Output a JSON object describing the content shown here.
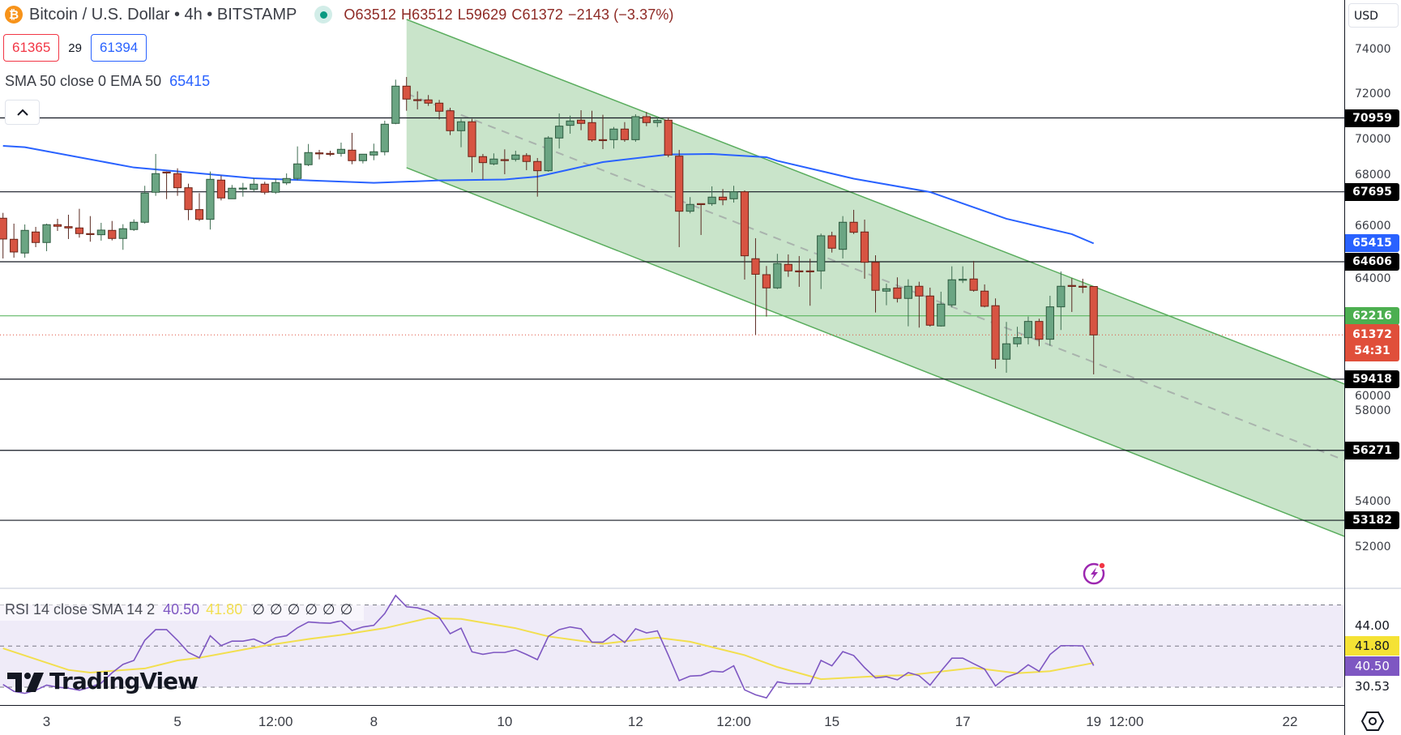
{
  "header": {
    "symbol_icon": "bitcoin-icon",
    "title": "Bitcoin / U.S. Dollar • 4h • BITSTAMP",
    "ohlc": {
      "open": "O63512",
      "high": "H63512",
      "low": "L59629",
      "close": "C61372",
      "change": "−2143 (−3.37%)"
    },
    "sell_price": "61365",
    "spread": "29",
    "buy_price": "61394",
    "indicator_label": "SMA 50 close 0 EMA 50",
    "indicator_value": "65415"
  },
  "rsi_header": {
    "label": "RSI 14 close SMA 14 2",
    "rsi_value": "40.50",
    "sma_value": "41.80",
    "empty_values": "∅∅∅∅∅∅"
  },
  "logo": {
    "text": "TradingView"
  },
  "colors": {
    "up": "#6ba583",
    "down": "#d75442",
    "ema": "#2962ff",
    "channel_fill": "#c9e4ca",
    "channel_line": "#5aad5e",
    "rsi": "#7e57c2",
    "rsi_sma": "#f2df4f",
    "rsi_band": "#efebf8",
    "level_line": "#131722",
    "green_level": "#4caf50",
    "current_price": "#e04f3a"
  },
  "price_axis": {
    "currency": "USD",
    "ticks": [
      "74000",
      "72000",
      "70000",
      "68000",
      "66000",
      "64000",
      "60000",
      "58000",
      "54000",
      "52000"
    ],
    "levels": [
      {
        "value": "70959",
        "color": "#000000"
      },
      {
        "value": "67695",
        "color": "#000000"
      },
      {
        "value": "64606",
        "color": "#000000"
      },
      {
        "value": "59418",
        "color": "#000000"
      },
      {
        "value": "56271",
        "color": "#000000"
      },
      {
        "value": "53182",
        "color": "#000000"
      },
      {
        "value": "65415",
        "color": "#2962ff"
      },
      {
        "value": "62216",
        "color": "#4caf50"
      }
    ],
    "current_price": "61372",
    "countdown": "54:31"
  },
  "rsi_axis": [
    {
      "text": "44.00",
      "bg": "",
      "fg": "#131722"
    },
    {
      "text": "41.80",
      "bg": "#f5e234",
      "fg": "#131722"
    },
    {
      "text": "40.50",
      "bg": "#7e57c2",
      "fg": "#ffffff"
    },
    {
      "text": "30.53",
      "bg": "",
      "fg": "#131722"
    }
  ],
  "time_axis": [
    {
      "label": "3",
      "time": "3 00:00"
    },
    {
      "label": "5",
      "time": "5 00:00"
    },
    {
      "label": "12:00",
      "time": "6 12:00"
    },
    {
      "label": "8",
      "time": "8 00:00"
    },
    {
      "label": "10",
      "time": "10 00:00"
    },
    {
      "label": "12",
      "time": "12 00:00"
    },
    {
      "label": "12:00",
      "time": "13 12:00"
    },
    {
      "label": "15",
      "time": "15 00:00"
    },
    {
      "label": "17",
      "time": "17 00:00"
    },
    {
      "label": "19",
      "time": "19 00:00"
    },
    {
      "label": "12:00",
      "time": "19 12:00"
    },
    {
      "label": "22",
      "time": "22 00:00"
    }
  ],
  "chart_data": {
    "type": "candlestick",
    "interval": "4h",
    "ylim": [
      50500,
      76200
    ],
    "candle_fields": [
      "time",
      "open",
      "high",
      "low",
      "close"
    ],
    "candles": [
      [
        "2 08:00",
        66529,
        66765,
        64750,
        65609
      ],
      [
        "2 12:00",
        65598,
        66289,
        64786,
        65036
      ],
      [
        "2 16:00",
        64990,
        66253,
        64786,
        65992
      ],
      [
        "2 20:00",
        65920,
        66146,
        65251,
        65455
      ],
      [
        "3 00:00",
        65455,
        66289,
        65072,
        66243
      ],
      [
        "3 04:00",
        66243,
        66504,
        65967,
        66171
      ],
      [
        "3 08:00",
        66157,
        66683,
        65609,
        66099
      ],
      [
        "3 12:00",
        66099,
        66944,
        65670,
        65849
      ],
      [
        "3 16:00",
        65849,
        66622,
        65491,
        65840
      ],
      [
        "3 20:00",
        65799,
        66325,
        65537,
        66003
      ],
      [
        "4 00:00",
        65992,
        66407,
        65548,
        65634
      ],
      [
        "4 04:00",
        65634,
        66264,
        65133,
        66064
      ],
      [
        "4 08:00",
        66028,
        66479,
        65967,
        66350
      ],
      [
        "4 12:00",
        66350,
        67961,
        66289,
        67639
      ],
      [
        "4 16:00",
        67675,
        69368,
        67517,
        68498
      ],
      [
        "4 20:00",
        68570,
        68591,
        67374,
        68545
      ],
      [
        "5 00:00",
        68498,
        68734,
        67517,
        67875
      ],
      [
        "5 04:00",
        67875,
        68054,
        66443,
        66909
      ],
      [
        "5 08:00",
        66909,
        67639,
        66407,
        66479
      ],
      [
        "5 12:00",
        66479,
        68591,
        66028,
        68247
      ],
      [
        "5 16:00",
        68212,
        68412,
        67317,
        67424
      ],
      [
        "5 20:00",
        67388,
        67997,
        67388,
        67854
      ],
      [
        "6 00:00",
        67854,
        68090,
        67481,
        67860
      ],
      [
        "6 04:00",
        67804,
        68294,
        67696,
        68033
      ],
      [
        "6 08:00",
        68033,
        68140,
        67578,
        67675
      ],
      [
        "6 12:00",
        67675,
        68269,
        67603,
        68104
      ],
      [
        "6 16:00",
        68090,
        68509,
        67997,
        68283
      ],
      [
        "6 20:00",
        68283,
        69701,
        68197,
        68928
      ],
      [
        "7 00:00",
        68892,
        69808,
        68831,
        69429
      ],
      [
        "7 04:00",
        69415,
        69547,
        69128,
        69410
      ],
      [
        "7 08:00",
        69393,
        69511,
        69271,
        69390
      ],
      [
        "7 12:00",
        69393,
        69869,
        69250,
        69572
      ],
      [
        "7 16:00",
        69536,
        70299,
        68913,
        69071
      ],
      [
        "7 20:00",
        69071,
        69368,
        68949,
        69357
      ],
      [
        "8 00:00",
        69321,
        69823,
        69092,
        69465
      ],
      [
        "8 04:00",
        69465,
        70836,
        69307,
        70682
      ],
      [
        "8 08:00",
        70718,
        72651,
        70682,
        72364
      ],
      [
        "8 12:00",
        72364,
        72769,
        71276,
        71792
      ],
      [
        "8 16:00",
        71767,
        72135,
        71337,
        71760
      ],
      [
        "8 20:00",
        71756,
        71971,
        71491,
        71613
      ],
      [
        "9 00:00",
        71613,
        71756,
        70897,
        71255
      ],
      [
        "9 04:00",
        71276,
        71409,
        70202,
        70395
      ],
      [
        "9 08:00",
        70395,
        70918,
        69665,
        70789
      ],
      [
        "9 12:00",
        70789,
        70918,
        68555,
        69250
      ],
      [
        "9 16:00",
        69250,
        69368,
        68233,
        68985
      ],
      [
        "9 20:00",
        68928,
        69393,
        68867,
        69142
      ],
      [
        "10 00:00",
        69117,
        69572,
        68473,
        69110
      ],
      [
        "10 04:00",
        69128,
        69511,
        69035,
        69321
      ],
      [
        "10 08:00",
        69296,
        69403,
        68652,
        69035
      ],
      [
        "10 12:00",
        69035,
        69189,
        67481,
        68627
      ],
      [
        "10 16:00",
        68627,
        70156,
        68580,
        70073
      ],
      [
        "10 20:00",
        70073,
        71158,
        69608,
        70596
      ],
      [
        "11 00:00",
        70632,
        71061,
        70263,
        70825
      ],
      [
        "11 04:00",
        70861,
        71301,
        70417,
        70718
      ],
      [
        "11 08:00",
        70753,
        71276,
        69905,
        69987
      ],
      [
        "11 12:00",
        69999,
        71097,
        69583,
        69990
      ],
      [
        "11 16:00",
        69999,
        70560,
        69608,
        70467
      ],
      [
        "11 20:00",
        70467,
        70775,
        69905,
        69999
      ],
      [
        "12 00:00",
        69999,
        71122,
        69905,
        71015
      ],
      [
        "12 04:00",
        71015,
        71219,
        70596,
        70753
      ],
      [
        "12 08:00",
        70753,
        70979,
        70560,
        70847
      ],
      [
        "12 12:00",
        70861,
        70990,
        69225,
        69321
      ],
      [
        "12 16:00",
        69271,
        69547,
        65251,
        66837
      ],
      [
        "12 20:00",
        66837,
        67460,
        66744,
        67138
      ],
      [
        "13 00:00",
        67173,
        67173,
        65788,
        67170
      ],
      [
        "13 04:00",
        67173,
        67936,
        67077,
        67460
      ],
      [
        "13 08:00",
        67460,
        67818,
        67102,
        67338
      ],
      [
        "13 12:00",
        67388,
        67961,
        67220,
        67696
      ],
      [
        "13 16:00",
        67696,
        67757,
        63819,
        64868
      ],
      [
        "13 20:00",
        64739,
        65645,
        61374,
        64052
      ],
      [
        "14 00:00",
        64034,
        64417,
        62183,
        63450
      ],
      [
        "14 04:00",
        63450,
        64954,
        63400,
        64524
      ],
      [
        "14 08:00",
        64488,
        64929,
        63937,
        64202
      ],
      [
        "14 12:00",
        64202,
        64857,
        63497,
        64200
      ],
      [
        "14 16:00",
        64202,
        64739,
        62663,
        64200
      ],
      [
        "14 20:00",
        64202,
        65849,
        63400,
        65752
      ],
      [
        "15 00:00",
        65752,
        65931,
        65011,
        65204
      ],
      [
        "15 04:00",
        65154,
        66622,
        64750,
        66350
      ],
      [
        "15 08:00",
        66350,
        66898,
        65830,
        65906
      ],
      [
        "15 12:00",
        65920,
        66468,
        63855,
        64582
      ],
      [
        "15 16:00",
        64582,
        64893,
        62362,
        63343
      ],
      [
        "15 20:00",
        63307,
        63640,
        62684,
        63414
      ],
      [
        "16 00:00",
        63450,
        63916,
        62806,
        62985
      ],
      [
        "16 04:00",
        62985,
        63830,
        61753,
        63522
      ],
      [
        "16 08:00",
        63522,
        63722,
        61696,
        63092
      ],
      [
        "16 12:00",
        63092,
        63461,
        61740,
        61803
      ],
      [
        "16 16:00",
        61768,
        63282,
        61740,
        62734
      ],
      [
        "16 20:00",
        62698,
        64403,
        62591,
        63808
      ],
      [
        "17 00:00",
        63830,
        64403,
        63665,
        63830
      ],
      [
        "17 04:00",
        63844,
        64642,
        63282,
        63343
      ],
      [
        "17 08:00",
        63307,
        63604,
        62591,
        62638
      ],
      [
        "17 12:00",
        62663,
        62985,
        59881,
        60300
      ],
      [
        "17 16:00",
        60300,
        61947,
        59702,
        60980
      ],
      [
        "17 20:00",
        60980,
        61732,
        60837,
        61252
      ],
      [
        "18 00:00",
        61252,
        62183,
        60955,
        61968
      ],
      [
        "18 04:00",
        61968,
        62090,
        60873,
        61181
      ],
      [
        "18 08:00",
        61181,
        63103,
        60894,
        62613
      ],
      [
        "18 12:00",
        62613,
        64177,
        61589,
        63522
      ],
      [
        "18 16:00",
        63558,
        63880,
        62387,
        63550
      ],
      [
        "18 20:00",
        63522,
        63855,
        63221,
        63512
      ],
      [
        "19 00:00",
        63512,
        63512,
        59629,
        61372
      ]
    ],
    "ema50": [
      [
        "2 08:00",
        69726
      ],
      [
        "2 16:00",
        69665
      ],
      [
        "4 08:00",
        68770
      ],
      [
        "6 04:00",
        68294
      ],
      [
        "8 00:00",
        68090
      ],
      [
        "9 00:00",
        68197
      ],
      [
        "10 00:00",
        68240
      ],
      [
        "10 12:00",
        68366
      ],
      [
        "11 12:00",
        69010
      ],
      [
        "12 12:00",
        69343
      ],
      [
        "13 04:00",
        69368
      ],
      [
        "14 00:00",
        69225
      ],
      [
        "14 04:00",
        69064
      ],
      [
        "15 08:00",
        68276
      ],
      [
        "16 12:00",
        67685
      ],
      [
        "17 16:00",
        66504
      ],
      [
        "18 16:00",
        65824
      ],
      [
        "19 00:00",
        65415
      ]
    ],
    "horizontal_levels": [
      70959,
      67695,
      64606,
      59418,
      56271,
      53182
    ],
    "green_level": 62216,
    "current_price": 61372,
    "channel": {
      "upper": [
        [
          "8 12:00",
          75311
        ],
        [
          "22 20:00",
          59201
        ]
      ],
      "lower": [
        [
          "8 12:00",
          68760
        ],
        [
          "22 20:00",
          52470
        ]
      ]
    },
    "rsi": {
      "period": 14,
      "bands": [
        70,
        50,
        30
      ],
      "values": [
        31.3,
        28.0,
        27.0,
        28.5,
        31.0,
        30.0,
        29.5,
        28.5,
        30.0,
        32.0,
        37.0,
        41.1,
        43.0,
        52.8,
        58.0,
        58.0,
        52.8,
        46.9,
        44.3,
        55.0,
        50.2,
        52.4,
        52.4,
        53.4,
        51.1,
        54.1,
        55.0,
        58.9,
        61.7,
        61.3,
        61.1,
        62.3,
        57.6,
        59.3,
        60.1,
        65.8,
        74.6,
        69.1,
        68.6,
        67.1,
        63.9,
        56.0,
        58.7,
        47.2,
        46.0,
        46.9,
        46.9,
        48.2,
        45.9,
        43.4,
        54.7,
        58.0,
        59.3,
        58.4,
        51.9,
        51.9,
        55.7,
        51.7,
        58.4,
        56.4,
        57.4,
        45.6,
        33.2,
        35.4,
        35.7,
        37.8,
        37.4,
        40.4,
        28.7,
        26.3,
        24.8,
        32.6,
        31.7,
        31.7,
        31.7,
        43.0,
        40.4,
        47.3,
        45.4,
        39.5,
        34.5,
        35.1,
        33.6,
        37.1,
        35.6,
        31.0,
        37.8,
        44.1,
        44.1,
        41.4,
        38.8,
        30.6,
        34.9,
        36.8,
        40.9,
        37.7,
        45.9,
        50.2,
        50.2,
        50.1,
        40.5
      ],
      "sma": [
        [
          "2 08:00",
          48.9
        ],
        [
          "3 08:00",
          38.4
        ],
        [
          "3 16:00",
          37.1
        ],
        [
          "4 12:00",
          39.1
        ],
        [
          "5 00:00",
          43.0
        ],
        [
          "5 08:00",
          44.3
        ],
        [
          "6 08:00",
          50.2
        ],
        [
          "7 00:00",
          53.4
        ],
        [
          "7 12:00",
          55.4
        ],
        [
          "8 04:00",
          58.7
        ],
        [
          "8 20:00",
          63.6
        ],
        [
          "9 08:00",
          63.2
        ],
        [
          "10 04:00",
          58.7
        ],
        [
          "10 16:00",
          54.7
        ],
        [
          "11 12:00",
          51.1
        ],
        [
          "12 08:00",
          54.1
        ],
        [
          "12 20:00",
          52.1
        ],
        [
          "13 16:00",
          45.6
        ],
        [
          "14 04:00",
          39.8
        ],
        [
          "14 20:00",
          33.9
        ],
        [
          "15 20:00",
          35.6
        ],
        [
          "16 04:00",
          35.8
        ],
        [
          "17 04:00",
          39.4
        ],
        [
          "17 20:00",
          36.8
        ],
        [
          "18 08:00",
          37.8
        ],
        [
          "19 00:00",
          41.8
        ]
      ]
    }
  }
}
